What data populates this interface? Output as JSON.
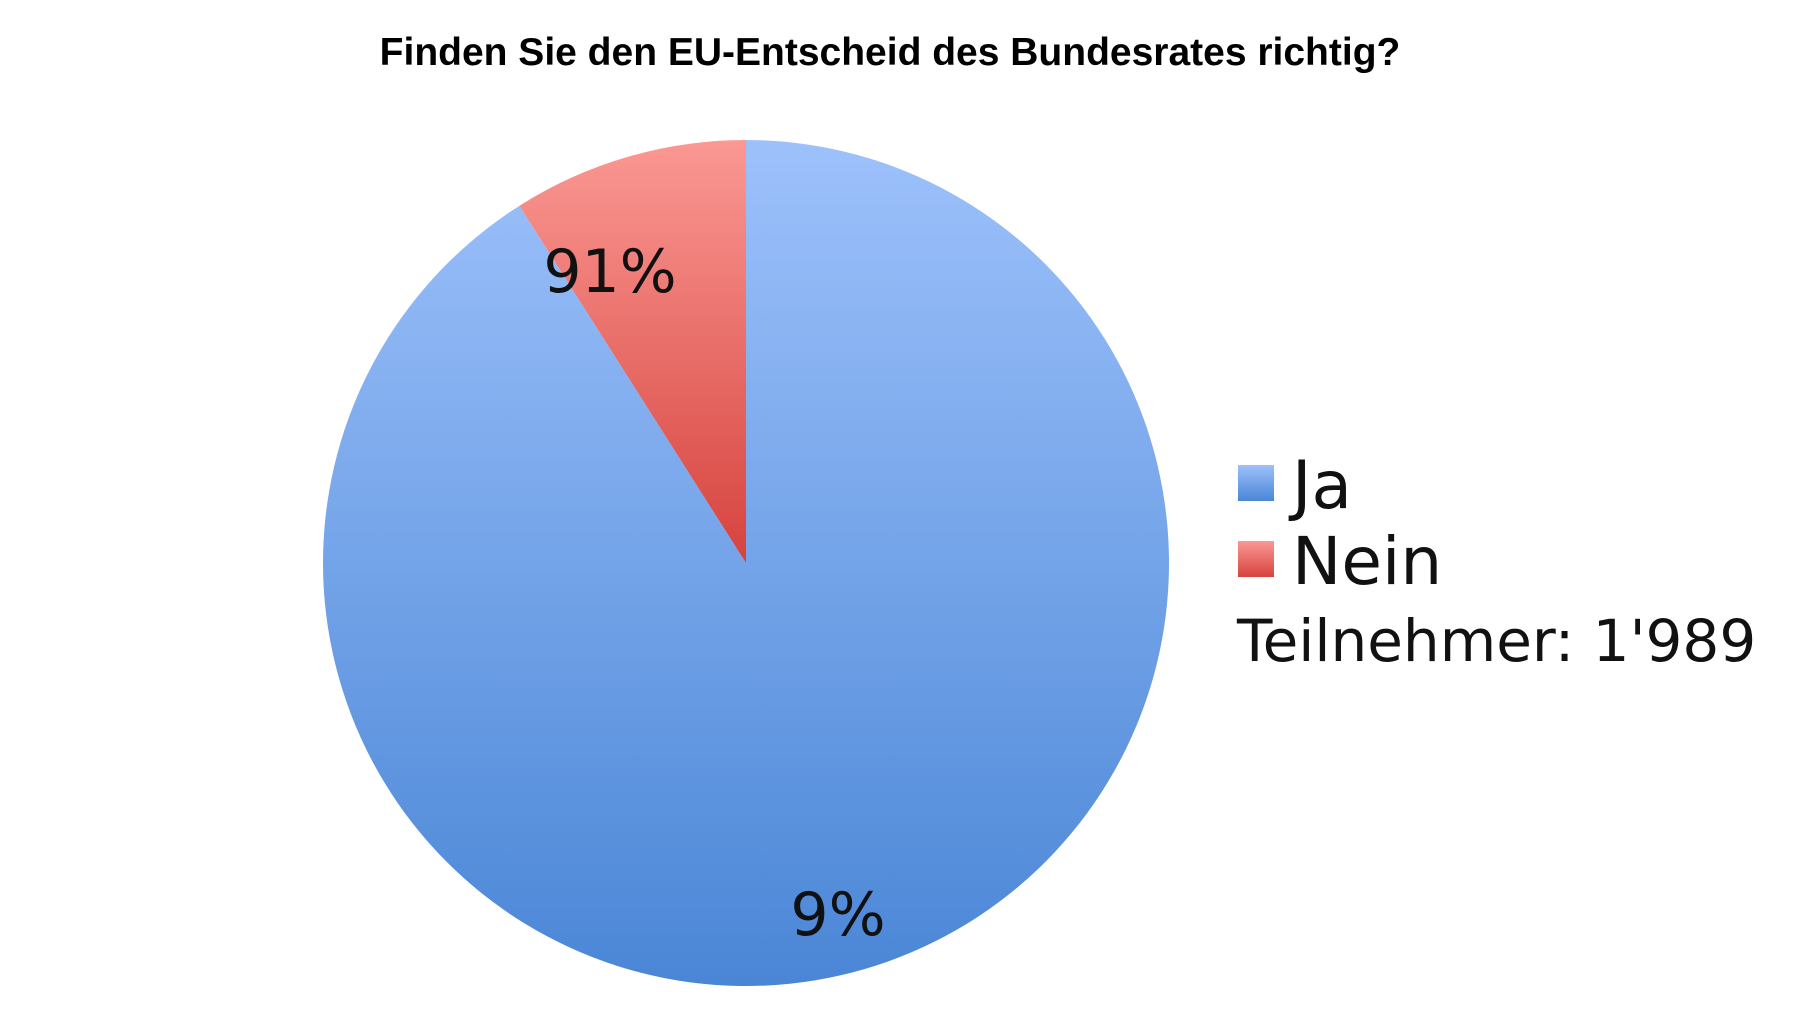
{
  "chart_data": {
    "type": "pie",
    "title": "Finden Sie den EU-Entscheid des Bundesrates richtig?",
    "categories": [
      "Ja",
      "Nein"
    ],
    "values": [
      91,
      9
    ],
    "data_labels": [
      "91%",
      "9%"
    ],
    "colors": {
      "Ja": {
        "top": "#9dc1fb",
        "bottom": "#4a86d6"
      },
      "Nein": {
        "top": "#fb9893",
        "bottom": "#d6433e"
      }
    },
    "legend_position": "right",
    "start": "12 o'clock",
    "direction": "clockwise",
    "note": "Teilnehmer: 1'989"
  }
}
